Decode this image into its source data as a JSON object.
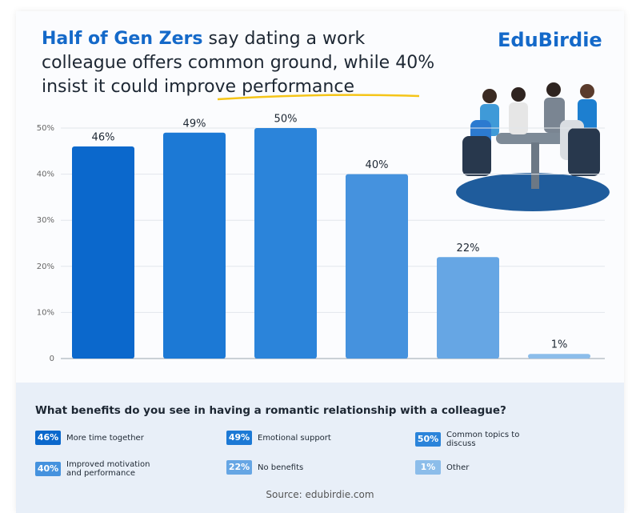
{
  "chart_data": {
    "type": "bar",
    "title_highlight": "Half of Gen Zers",
    "title": "say dating a work colleague offers common ground, while 40% insist it could improve performance",
    "brand": "EduBirdie",
    "question": "What benefits do you see in having a romantic relationship with a colleague?",
    "source": "Source: edubirdie.com",
    "categories": [
      "More time together",
      "Emotional support",
      "Common topics to discuss",
      "Improved motivation and performance",
      "No benefits",
      "Other"
    ],
    "values": [
      46,
      49,
      50,
      40,
      22,
      1
    ],
    "value_labels": [
      "46%",
      "49%",
      "50%",
      "40%",
      "22%",
      "1%"
    ],
    "colors": [
      "#0b68cc",
      "#1c79d5",
      "#2b84da",
      "#4592de",
      "#66a6e4",
      "#8cbdea"
    ],
    "ylim": [
      0,
      50
    ],
    "yticks": [
      0,
      {
        "value": 10,
        "label": "10%"
      },
      {
        "value": 20,
        "label": "20%"
      },
      {
        "value": 30,
        "label": "30%"
      },
      {
        "value": 40,
        "label": "40%"
      },
      {
        "value": 50,
        "label": "50%"
      }
    ],
    "grid": true
  }
}
